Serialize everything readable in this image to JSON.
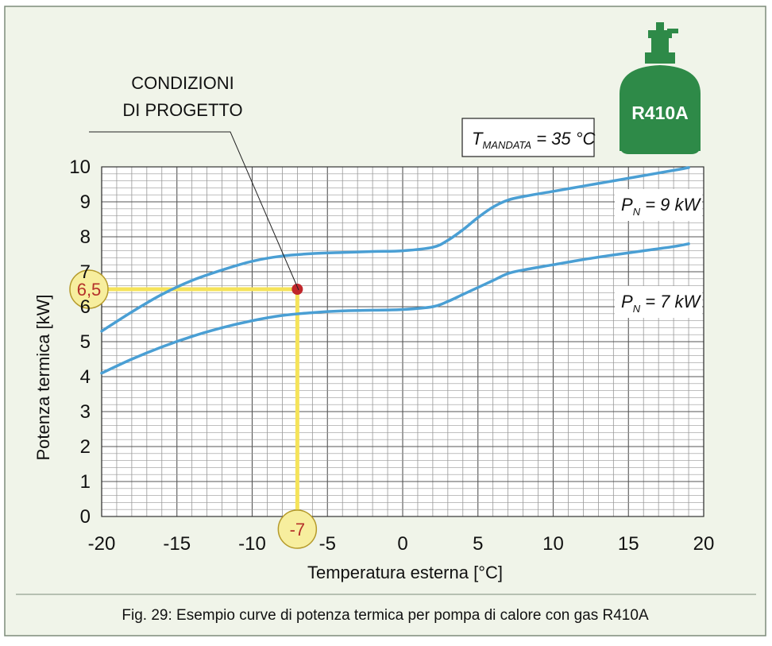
{
  "chart_data": {
    "type": "line",
    "xlabel": "Temperatura esterna [°C]",
    "ylabel": "Potenza termica [kW]",
    "xlim": [
      -20,
      20
    ],
    "ylim": [
      0,
      10
    ],
    "x_ticks": [
      "-20",
      "-15",
      "-10",
      "-5",
      "0",
      "5",
      "10",
      "15",
      "20"
    ],
    "y_ticks": [
      "0",
      "1",
      "2",
      "3",
      "4",
      "5",
      "6",
      "7",
      "8",
      "9",
      "10"
    ],
    "grid": true,
    "series": [
      {
        "name": "P_N = 9 kW",
        "label_main": "P",
        "label_sub": "N",
        "label_rest": " = 9 kW",
        "x": [
          -20,
          -18,
          -16,
          -14,
          -12,
          -10,
          -8,
          -6,
          -4,
          -2,
          0,
          2,
          3,
          4,
          5,
          6,
          7,
          8,
          10,
          12,
          14,
          16,
          18,
          19
        ],
        "y": [
          5.3,
          5.85,
          6.35,
          6.75,
          7.05,
          7.3,
          7.45,
          7.52,
          7.55,
          7.58,
          7.6,
          7.7,
          7.9,
          8.2,
          8.55,
          8.85,
          9.05,
          9.15,
          9.3,
          9.45,
          9.6,
          9.75,
          9.9,
          9.98
        ]
      },
      {
        "name": "P_N = 7 kW",
        "label_main": "P",
        "label_sub": "N",
        "label_rest": " = 7 kW",
        "x": [
          -20,
          -18,
          -16,
          -14,
          -12,
          -10,
          -8,
          -6,
          -4,
          -2,
          0,
          2,
          3,
          4,
          5,
          6,
          7,
          8,
          10,
          12,
          14,
          16,
          18,
          19
        ],
        "y": [
          4.1,
          4.5,
          4.85,
          5.15,
          5.4,
          5.6,
          5.75,
          5.83,
          5.88,
          5.9,
          5.92,
          6.0,
          6.15,
          6.35,
          6.55,
          6.75,
          6.95,
          7.05,
          7.2,
          7.35,
          7.48,
          7.6,
          7.72,
          7.8
        ]
      }
    ],
    "design_point": {
      "x": -7,
      "y": 6.5,
      "x_label": "-7",
      "y_label": "6,5"
    },
    "annotations": {
      "condition_line1": "CONDIZIONI",
      "condition_line2": "DI PROGETTO",
      "temp_main": "T",
      "temp_sub": "MANDATA",
      "temp_rest": " = 35 °C"
    }
  },
  "badge": {
    "label": "R410A"
  },
  "caption": "Fig. 29: Esempio curve di potenza termica per pompa di calore con gas R410A",
  "colors": {
    "frame_bg": "#f0f4e9",
    "frame_border": "#7d8b7a",
    "curve": "#4a9fd4",
    "highlight": "#f5e35a",
    "point": "#c0262b",
    "bubble_fill": "#f7ee9e",
    "bubble_stroke": "#b59a2a",
    "bubble_text": "#b4302a",
    "cylinder": "#2e8a48"
  }
}
